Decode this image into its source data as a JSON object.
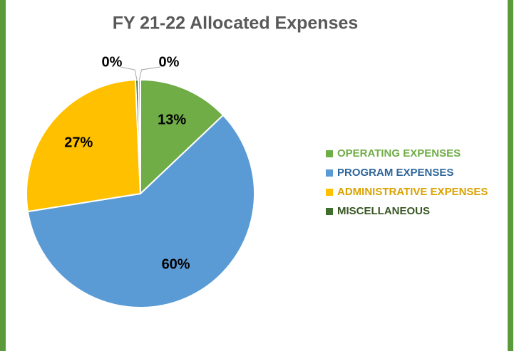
{
  "chart_data": {
    "type": "pie",
    "title": "FY 21-22 Allocated Expenses",
    "categories": [
      "OPERATING EXPENSES",
      "PROGRAM EXPENSES",
      "ADMINISTRATIVE EXPENSES",
      "MISCELLANEOUS",
      null
    ],
    "values": [
      13,
      60,
      27,
      0.4,
      0.3
    ],
    "value_labels": [
      "13%",
      "60%",
      "27%",
      "0%",
      "0%"
    ],
    "colors": [
      "#70ad47",
      "#5b9bd5",
      "#ffc000",
      "#3f6f2a",
      "#a5a5a5"
    ],
    "legend_colors": [
      "#70ad47",
      "#2f6699",
      "#d9a200",
      "#375623"
    ],
    "legend": "right"
  }
}
